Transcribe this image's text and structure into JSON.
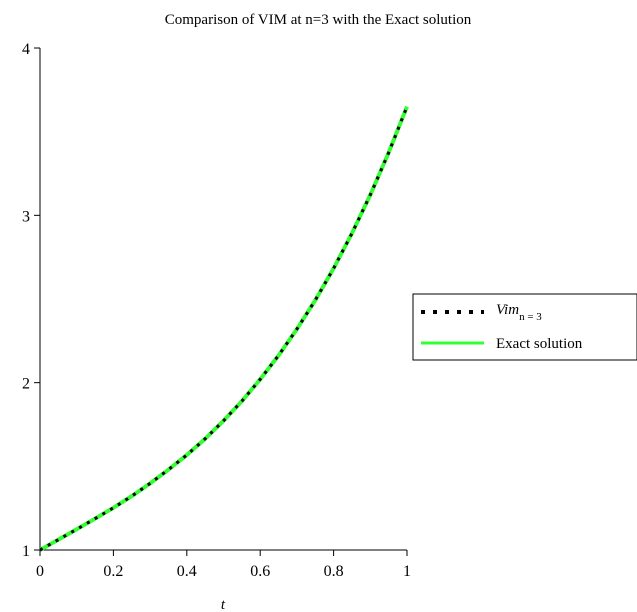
{
  "chart_data": {
    "type": "line",
    "title": "Comparison of VIM at n=3 with the Exact solution",
    "xlabel": "t",
    "ylabel": "",
    "xlim": [
      0,
      1
    ],
    "ylim": [
      1,
      4
    ],
    "x_ticks": [
      0,
      0.2,
      0.4,
      0.6,
      0.8,
      1
    ],
    "x_tick_labels": [
      "0",
      "0.2",
      "0.4",
      "0.6",
      "0.8",
      "1"
    ],
    "y_ticks": [
      1,
      2,
      3,
      4
    ],
    "y_tick_labels": [
      "1",
      "2",
      "3",
      "4"
    ],
    "grid": false,
    "legend_position": "right",
    "x": [
      0,
      0.05,
      0.1,
      0.15,
      0.2,
      0.25,
      0.3,
      0.35,
      0.4,
      0.45,
      0.5,
      0.55,
      0.6,
      0.65,
      0.7,
      0.75,
      0.8,
      0.85,
      0.9,
      0.95,
      1
    ],
    "series": [
      {
        "name": "Exact solution",
        "style": "solid",
        "color": "#33ff33",
        "values": [
          1.0,
          1.062,
          1.124,
          1.187,
          1.252,
          1.322,
          1.398,
          1.48,
          1.568,
          1.665,
          1.772,
          1.89,
          2.02,
          2.163,
          2.32,
          2.493,
          2.683,
          2.892,
          3.122,
          3.374,
          3.65
        ]
      },
      {
        "name": "Vim",
        "name_subscript": "n = 3",
        "style": "dotted",
        "color": "#000000",
        "values": [
          1.0,
          1.062,
          1.124,
          1.187,
          1.252,
          1.322,
          1.398,
          1.48,
          1.568,
          1.665,
          1.772,
          1.89,
          2.02,
          2.163,
          2.32,
          2.493,
          2.683,
          2.892,
          3.122,
          3.374,
          3.65
        ]
      }
    ]
  }
}
